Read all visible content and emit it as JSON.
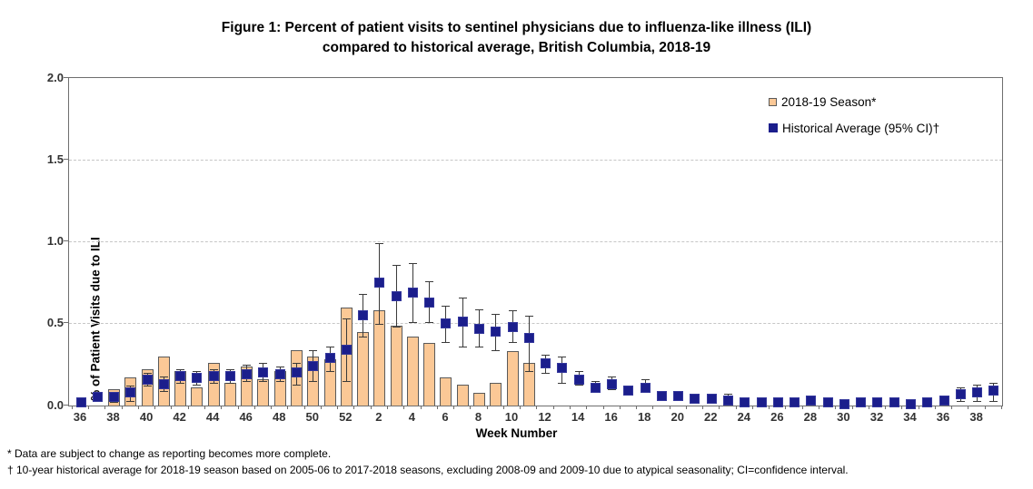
{
  "title": {
    "line1": "Figure 1: Percent of patient visits to sentinel physicians due to influenza-like illness (ILI)",
    "line2": "compared to historical average, British Columbia, 2018-19"
  },
  "y_axis": {
    "title": "% of Patient Visits due to ILI",
    "tick_labels": [
      "0.0",
      "0.5",
      "1.0",
      "1.5",
      "2.0"
    ],
    "min": 0.0,
    "max": 2.0
  },
  "x_axis": {
    "title": "Week Number",
    "label_every_n_weeks": 2
  },
  "legend": {
    "items": [
      {
        "label": "2018-19 Season*",
        "marker": "tan-outlined-square"
      },
      {
        "label": "Historical Average (95% CI)†",
        "marker": "navy-filled-square"
      }
    ]
  },
  "footnotes": {
    "line1": "* Data are subject to change as reporting becomes more complete.",
    "line2": "† 10-year historical average for 2018-19 season based on 2005-06 to 2017-2018 seasons, excluding 2008-09 and 2009-10 due to atypical seasonality; CI=confidence interval."
  },
  "colors": {
    "bar_fill": "#FBC896",
    "bar_border": "#5a5a5a",
    "marker_fill": "#1b1e8c",
    "marker_border": "#34379c",
    "error_bar": "#3a3a3a",
    "gridline": "#c6c6c6",
    "frame": "#6e6e6e",
    "tick_text": "#333333"
  },
  "chart_data": {
    "type": "combo_bar_scatter_ci",
    "title": "Figure 1: Percent of patient visits to sentinel physicians due to influenza-like illness (ILI) compared to historical average, British Columbia, 2018-19",
    "xlabel": "Week Number",
    "ylabel": "% of Patient Visits due to ILI",
    "ylim": [
      0.0,
      2.0
    ],
    "gridlines_y": [
      0.5,
      1.0,
      1.5
    ],
    "legend_position": "top-right-inside",
    "categories": [
      "36",
      "37",
      "38",
      "39",
      "40",
      "41",
      "42",
      "43",
      "44",
      "45",
      "46",
      "47",
      "48",
      "49",
      "50",
      "51",
      "52",
      "1",
      "2",
      "3",
      "4",
      "5",
      "6",
      "7",
      "8",
      "9",
      "10",
      "11",
      "12",
      "13",
      "14",
      "15",
      "16",
      "17",
      "18",
      "19",
      "20",
      "21",
      "22",
      "23",
      "24",
      "25",
      "26",
      "27",
      "28",
      "29",
      "30",
      "31",
      "32",
      "33",
      "34",
      "35",
      "36",
      "37",
      "38",
      "39"
    ],
    "series": [
      {
        "name": "2018-19 Season*",
        "type": "bar",
        "values": [
          null,
          null,
          0.1,
          0.17,
          0.22,
          0.3,
          0.21,
          0.11,
          0.26,
          0.14,
          0.24,
          0.16,
          0.21,
          0.34,
          0.3,
          0.28,
          0.6,
          0.45,
          0.58,
          0.49,
          0.42,
          0.38,
          0.17,
          0.13,
          0.08,
          0.14,
          0.33,
          0.26,
          null,
          null,
          null,
          null,
          null,
          null,
          null,
          null,
          null,
          null,
          null,
          null,
          null,
          null,
          null,
          null,
          null,
          null,
          null,
          null,
          null,
          null,
          null,
          null,
          null,
          null,
          null,
          null
        ]
      },
      {
        "name": "Historical Average (95% CI)†",
        "type": "scatter",
        "values": [
          0.02,
          0.05,
          0.05,
          0.08,
          0.16,
          0.13,
          0.18,
          0.17,
          0.18,
          0.18,
          0.19,
          0.2,
          0.19,
          0.2,
          0.24,
          0.29,
          0.34,
          0.55,
          0.75,
          0.67,
          0.69,
          0.63,
          0.5,
          0.51,
          0.47,
          0.45,
          0.48,
          0.41,
          0.26,
          0.23,
          0.16,
          0.11,
          0.13,
          0.09,
          0.11,
          0.06,
          0.06,
          0.04,
          0.04,
          0.03,
          0.02,
          0.02,
          0.02,
          0.02,
          0.03,
          0.02,
          0.01,
          0.02,
          0.02,
          0.02,
          0.01,
          0.02,
          0.03,
          0.07,
          0.08,
          0.09
        ],
        "ci_low": [
          null,
          null,
          0.02,
          0.03,
          0.12,
          0.09,
          0.14,
          0.13,
          0.14,
          0.14,
          0.15,
          0.15,
          0.15,
          0.13,
          0.15,
          0.21,
          0.15,
          0.42,
          0.5,
          0.48,
          0.51,
          0.51,
          0.39,
          0.36,
          0.36,
          0.34,
          0.39,
          0.21,
          0.2,
          0.14,
          0.13,
          0.09,
          0.1,
          0.07,
          0.09,
          null,
          null,
          null,
          null,
          0.01,
          null,
          null,
          null,
          null,
          null,
          null,
          null,
          null,
          null,
          null,
          null,
          null,
          null,
          0.03,
          0.03,
          0.03
        ],
        "ci_high": [
          null,
          null,
          0.08,
          0.12,
          0.2,
          0.18,
          0.22,
          0.21,
          0.22,
          0.22,
          0.25,
          0.26,
          0.24,
          0.26,
          0.34,
          0.36,
          0.53,
          0.68,
          0.99,
          0.86,
          0.87,
          0.76,
          0.61,
          0.66,
          0.59,
          0.56,
          0.58,
          0.55,
          0.31,
          0.3,
          0.21,
          0.15,
          0.18,
          0.11,
          0.16,
          null,
          null,
          null,
          null,
          0.07,
          null,
          null,
          null,
          null,
          null,
          null,
          null,
          null,
          null,
          null,
          null,
          null,
          null,
          0.11,
          0.13,
          0.14
        ]
      }
    ]
  }
}
